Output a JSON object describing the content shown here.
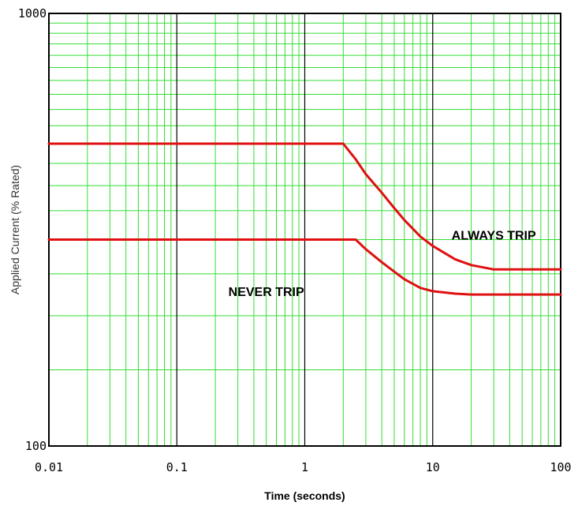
{
  "chart_data": {
    "type": "line",
    "xlabel": "Time (seconds)",
    "ylabel": "Applied Current (% Rated)",
    "x_scale": "log",
    "y_scale": "log",
    "xlim": [
      0.01,
      100
    ],
    "ylim": [
      100,
      1000
    ],
    "x_ticks": [
      "0.01",
      "0.1",
      "1",
      "10",
      "100"
    ],
    "y_ticks": [
      "1000",
      "100"
    ],
    "grid": true,
    "colors": {
      "grid_minor": "#33dd33",
      "grid_major": "#000000",
      "curve": "#e01010"
    },
    "series": [
      {
        "x": [
          0.01,
          2.0,
          2.5,
          3.0,
          4.0,
          5.0,
          6.0,
          8.0,
          10.0,
          15.0,
          20.0,
          30.0,
          50.0,
          100.0
        ],
        "y": [
          500,
          500,
          460,
          425,
          385,
          355,
          333,
          305,
          290,
          270,
          262,
          256,
          256,
          256
        ]
      },
      {
        "x": [
          0.01,
          2.5,
          3.0,
          4.0,
          5.0,
          6.0,
          8.0,
          10.0,
          15.0,
          20.0,
          50.0,
          100.0
        ],
        "y": [
          300,
          300,
          285,
          266,
          253,
          243,
          232,
          228,
          225,
          224,
          224,
          224
        ]
      }
    ],
    "annotations": [
      {
        "text": "ALWAYS TRIP",
        "x": 30,
        "y": 300
      },
      {
        "text": "NEVER TRIP",
        "x": 0.5,
        "y": 222
      }
    ]
  }
}
